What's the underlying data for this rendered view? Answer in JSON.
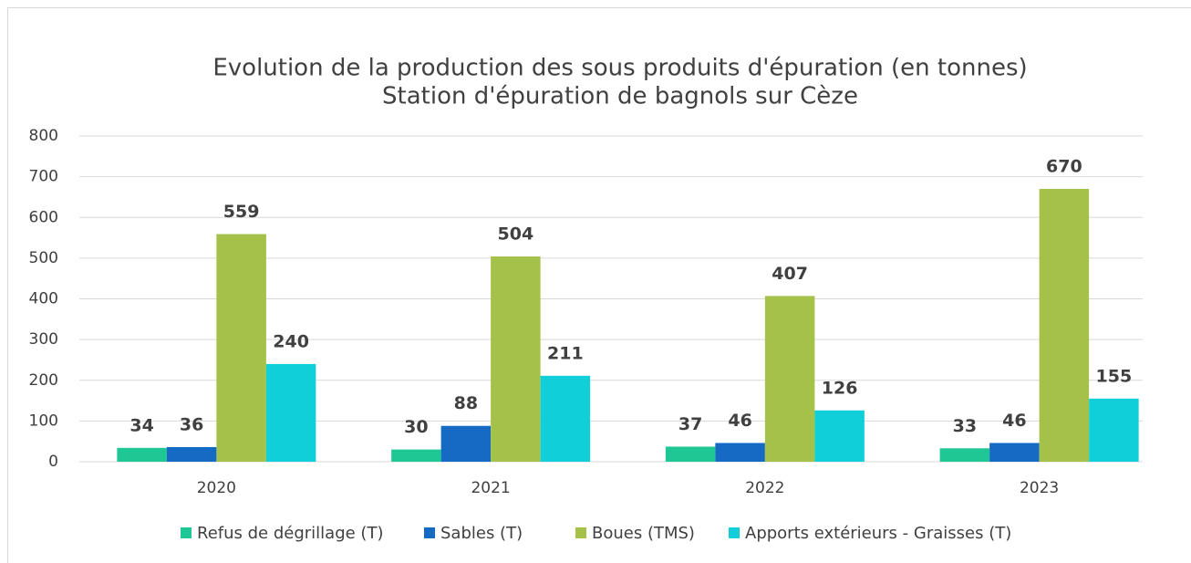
{
  "chart_data": {
    "type": "bar",
    "title": "Evolution de la production des sous produits d'épuration (en tonnes)",
    "subtitle": "Station d'épuration de bagnols sur Cèze",
    "categories": [
      "2020",
      "2021",
      "2022",
      "2023"
    ],
    "series": [
      {
        "name": "Refus de dégrillage (T)",
        "color": "#1fc794",
        "values": [
          34,
          30,
          37,
          33
        ]
      },
      {
        "name": "Sables (T)",
        "color": "#156bc4",
        "values": [
          36,
          88,
          46,
          46
        ]
      },
      {
        "name": "Boues (TMS)",
        "color": "#a4c14a",
        "values": [
          559,
          504,
          407,
          670
        ]
      },
      {
        "name": "Apports extérieurs - Graisses (T)",
        "color": "#10cfd8",
        "values": [
          240,
          211,
          126,
          155
        ]
      }
    ],
    "ylim": [
      0,
      800
    ],
    "yticks": [
      0,
      100,
      200,
      300,
      400,
      500,
      600,
      700,
      800
    ],
    "grid": true,
    "legend": "bottom"
  }
}
